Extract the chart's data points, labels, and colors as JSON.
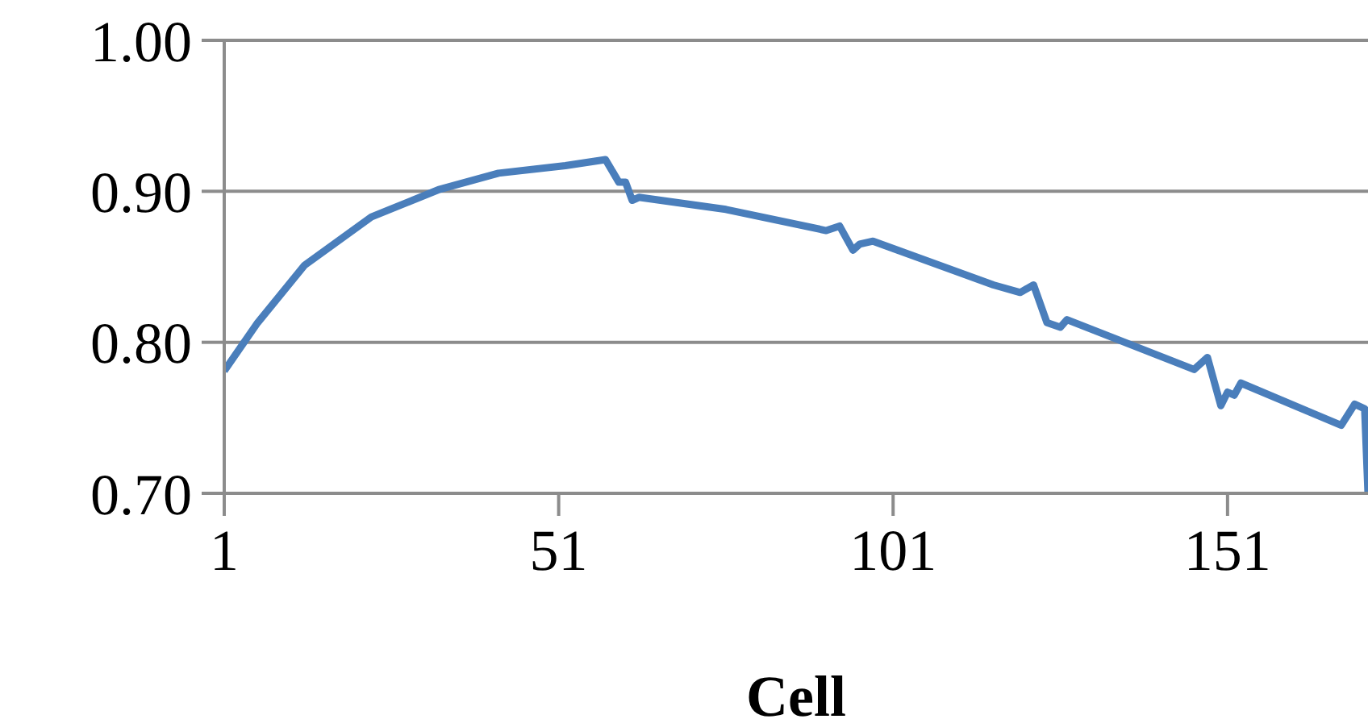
{
  "chart_data": {
    "type": "line",
    "xlabel": "Cell",
    "x": [
      1,
      6,
      13,
      23,
      33,
      42,
      52,
      58,
      60,
      61,
      62,
      63,
      76,
      91,
      93,
      95,
      96,
      98,
      116,
      120,
      122,
      124,
      126,
      127,
      146,
      148,
      150,
      151,
      152,
      153,
      168,
      170,
      171.5,
      172
    ],
    "series": [
      {
        "color": "#4a7ebb",
        "values": [
          0.781,
          0.813,
          0.851,
          0.883,
          0.901,
          0.912,
          0.917,
          0.921,
          0.906,
          0.906,
          0.894,
          0.896,
          0.888,
          0.874,
          0.877,
          0.861,
          0.865,
          0.867,
          0.838,
          0.833,
          0.838,
          0.813,
          0.81,
          0.815,
          0.782,
          0.79,
          0.758,
          0.767,
          0.765,
          0.773,
          0.745,
          0.759,
          0.756,
          0.7
        ]
      }
    ],
    "xlim": [
      1,
      172
    ],
    "xticks": [
      1,
      51,
      101,
      151
    ],
    "ylim": [
      0.7,
      1.0
    ],
    "yticks": [
      {
        "value": 0.7,
        "label": "0.70"
      },
      {
        "value": 0.8,
        "label": "0.80"
      },
      {
        "value": 0.9,
        "label": "0.90"
      },
      {
        "value": 1.0,
        "label": "1.00"
      }
    ],
    "grid": "y",
    "legend": false,
    "marker": "none",
    "line_style": "solid"
  }
}
